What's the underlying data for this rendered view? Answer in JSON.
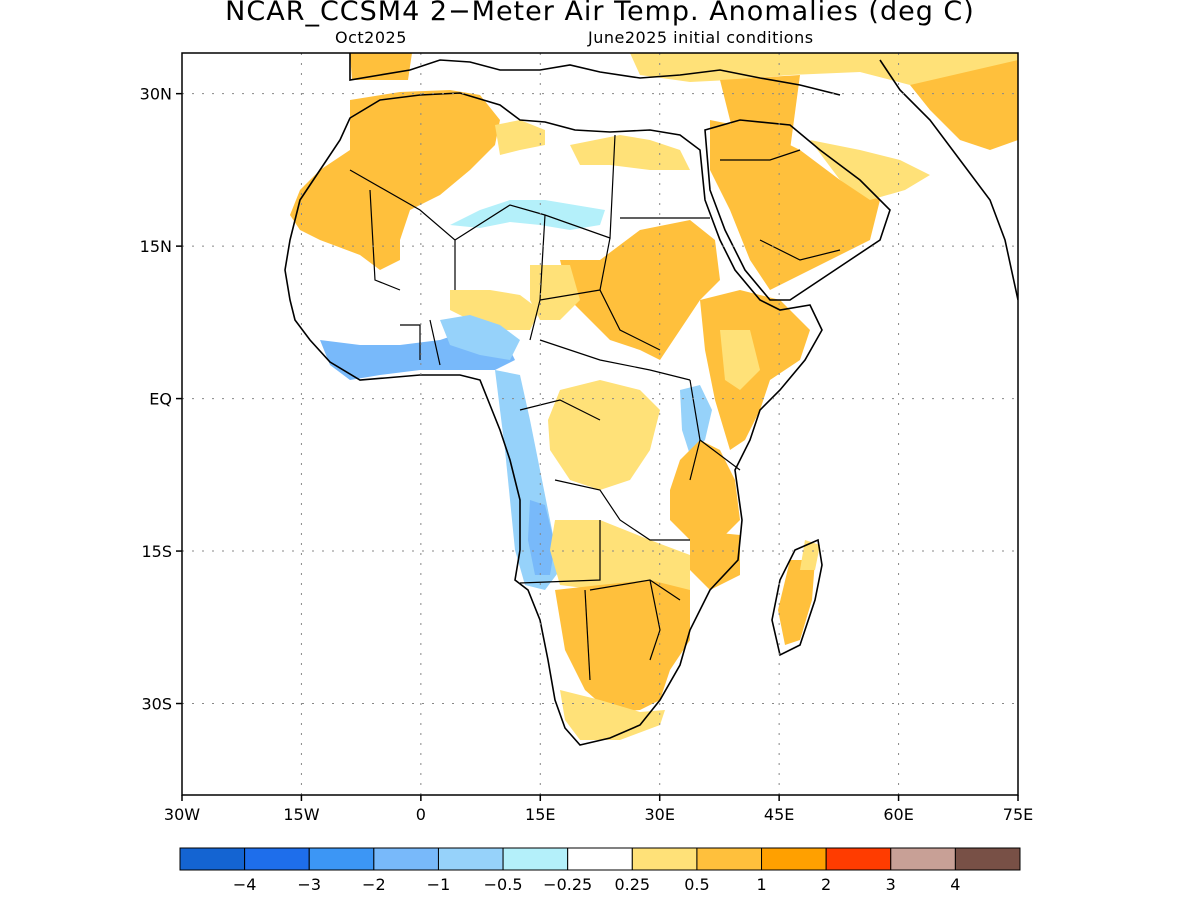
{
  "title": "NCAR_CCSM4 2−Meter Air Temp. Anomalies (deg C)",
  "subtitle_left": "Oct2025",
  "subtitle_right": "June2025 initial conditions",
  "map": {
    "projection": "lat-lon",
    "lon_range": [
      -30,
      75
    ],
    "lat_range": [
      -39,
      34
    ],
    "grid": "dotted",
    "x_ticks": [
      "30W",
      "15W",
      "0",
      "15E",
      "30E",
      "45E",
      "60E",
      "75E"
    ],
    "y_ticks": [
      "30N",
      "15N",
      "EQ",
      "15S",
      "30S"
    ]
  },
  "colorbar": {
    "colors": [
      "#1464d2",
      "#1e6eeb",
      "#3c96f5",
      "#78b9fa",
      "#96d2fa",
      "#b4f0fa",
      "#ffffff",
      "#ffe178",
      "#ffc03c",
      "#ffa000",
      "#ff3c00",
      "#c8a096",
      "#785046"
    ],
    "labels": [
      "−4",
      "−3",
      "−2",
      "−1",
      "−0.5",
      "−0.25",
      "0.25",
      "0.5",
      "1",
      "2",
      "3",
      "4"
    ]
  }
}
